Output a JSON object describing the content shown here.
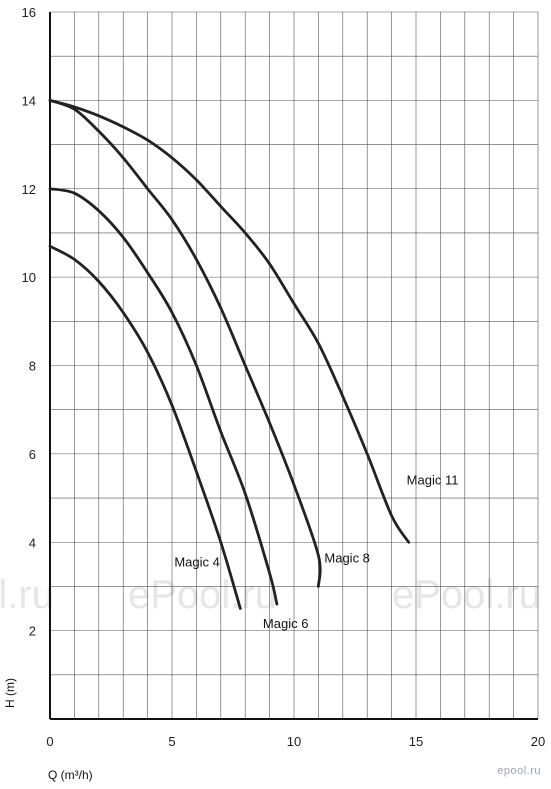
{
  "chart_data": {
    "type": "line",
    "xlabel": "Q (m³/h)",
    "ylabel": "H (m)",
    "xlim": [
      0,
      20
    ],
    "ylim": [
      0,
      16
    ],
    "x_ticks": [
      0,
      5,
      10,
      15,
      20
    ],
    "y_ticks": [
      2,
      4,
      6,
      8,
      10,
      12,
      14,
      16
    ],
    "grid": true,
    "series": [
      {
        "name": "Magic 4",
        "x": [
          0,
          1,
          2,
          3,
          4,
          5,
          6,
          7,
          7.8
        ],
        "y": [
          10.7,
          10.4,
          9.9,
          9.2,
          8.3,
          7.1,
          5.6,
          4.0,
          2.5
        ]
      },
      {
        "name": "Magic 6",
        "x": [
          0,
          1,
          2,
          3,
          4,
          5,
          6,
          7,
          8,
          9,
          9.3
        ],
        "y": [
          12.0,
          11.9,
          11.5,
          10.9,
          10.1,
          9.2,
          8.0,
          6.5,
          5.1,
          3.3,
          2.6
        ]
      },
      {
        "name": "Magic 8",
        "x": [
          0,
          1,
          2,
          3,
          4,
          5,
          6,
          7,
          8,
          9,
          10,
          11,
          11.0
        ],
        "y": [
          14.0,
          13.8,
          13.3,
          12.7,
          12.0,
          11.3,
          10.4,
          9.3,
          8.0,
          6.7,
          5.3,
          3.7,
          3.0
        ]
      },
      {
        "name": "Magic 11",
        "x": [
          0,
          1,
          2,
          3,
          4,
          5,
          6,
          7,
          8,
          9,
          10,
          11,
          12,
          13,
          14,
          14.7
        ],
        "y": [
          14.0,
          13.85,
          13.65,
          13.4,
          13.1,
          12.7,
          12.2,
          11.6,
          11.0,
          10.3,
          9.4,
          8.5,
          7.3,
          6.0,
          4.6,
          4.0
        ]
      }
    ]
  },
  "watermark": "ePool.ru",
  "logo": "epool.ru"
}
